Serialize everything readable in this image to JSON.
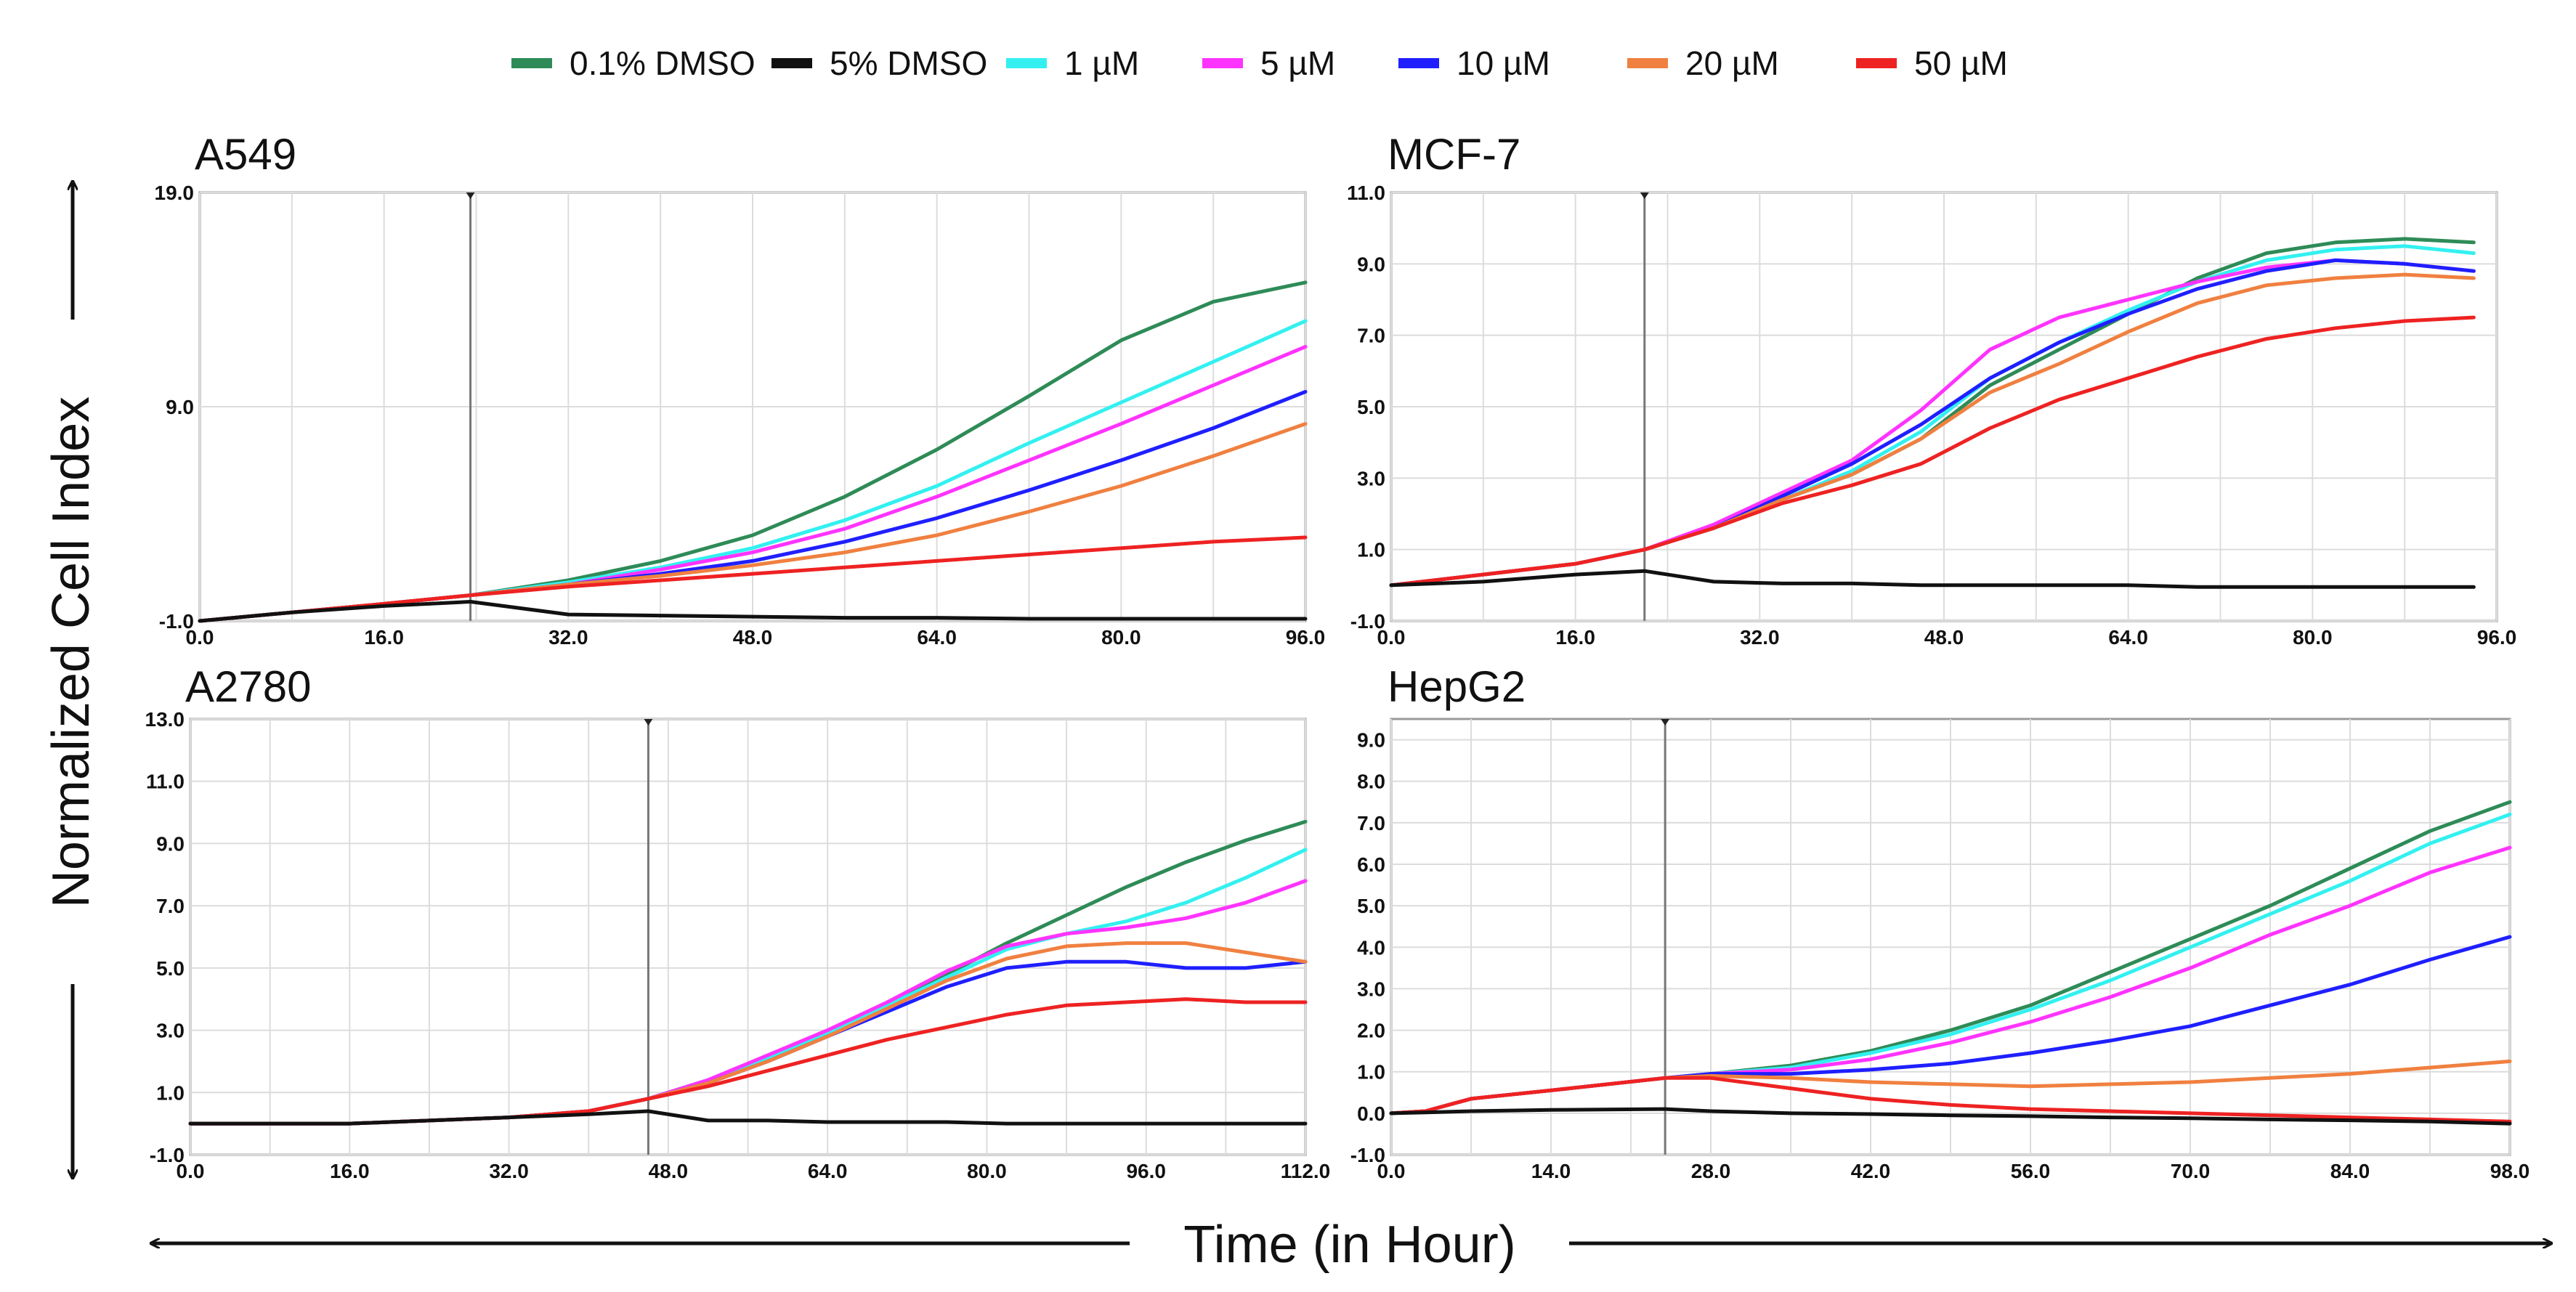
{
  "figure": {
    "y_axis_label": "Normalized Cell Index",
    "x_axis_label": "Time (in Hour)"
  },
  "legend": [
    {
      "name": "0.1% DMSO",
      "color": "#2e8b57"
    },
    {
      "name": "5% DMSO",
      "color": "#111111"
    },
    {
      "name": "1 µM",
      "color": "#33f0f0"
    },
    {
      "name": "5 µM",
      "color": "#ff33ff"
    },
    {
      "name": "10 µM",
      "color": "#1f1fff"
    },
    {
      "name": "20 µM",
      "color": "#f08040"
    },
    {
      "name": "50 µM",
      "color": "#ee2222"
    }
  ],
  "chart_data": [
    {
      "type": "line",
      "title": "A549",
      "xlabel": "Time (in Hour)",
      "ylabel": "Normalized Cell Index",
      "xlim": [
        0,
        96
      ],
      "ylim": [
        -1,
        19
      ],
      "x_ticks": [
        0,
        16,
        32,
        48,
        64,
        80,
        96
      ],
      "x_tick_labels": [
        "0.0",
        "16.0",
        "32.0",
        "48.0",
        "64.0",
        "80.0",
        "96.0"
      ],
      "y_tick_labels": [
        {
          "v": 19,
          "t": "19.0"
        },
        {
          "v": 9,
          "t": "9.0"
        },
        {
          "v": -1,
          "t": "-1.0"
        }
      ],
      "x_grid": [
        0,
        8,
        16,
        24,
        32,
        40,
        48,
        56,
        64,
        72,
        80,
        88,
        96
      ],
      "y_grid": [
        -1,
        9,
        19
      ],
      "treatment_time": 23.5,
      "x": [
        0,
        8,
        16,
        23.5,
        32,
        40,
        48,
        56,
        64,
        72,
        80,
        88,
        96
      ],
      "series": [
        {
          "name": "0.1% DMSO",
          "values": [
            -1.0,
            -0.6,
            -0.2,
            0.2,
            0.9,
            1.8,
            3.0,
            4.8,
            7.0,
            9.5,
            12.1,
            13.9,
            14.8
          ]
        },
        {
          "name": "5% DMSO",
          "values": [
            -1.0,
            -0.6,
            -0.3,
            -0.1,
            -0.7,
            -0.75,
            -0.8,
            -0.85,
            -0.85,
            -0.9,
            -0.9,
            -0.9,
            -0.9
          ]
        },
        {
          "name": "1 µM",
          "values": [
            -1.0,
            -0.6,
            -0.2,
            0.2,
            0.8,
            1.5,
            2.4,
            3.7,
            5.3,
            7.3,
            9.2,
            11.1,
            13.0
          ]
        },
        {
          "name": "5 µM",
          "values": [
            -1.0,
            -0.6,
            -0.2,
            0.2,
            0.7,
            1.4,
            2.2,
            3.3,
            4.8,
            6.5,
            8.2,
            10.0,
            11.8
          ]
        },
        {
          "name": "10 µM",
          "values": [
            -1.0,
            -0.6,
            -0.2,
            0.2,
            0.7,
            1.2,
            1.8,
            2.7,
            3.8,
            5.1,
            6.5,
            8.0,
            9.7
          ]
        },
        {
          "name": "20 µM",
          "values": [
            -1.0,
            -0.6,
            -0.2,
            0.2,
            0.7,
            1.1,
            1.6,
            2.2,
            3.0,
            4.1,
            5.3,
            6.7,
            8.2
          ]
        },
        {
          "name": "50 µM",
          "values": [
            -1.0,
            -0.6,
            -0.2,
            0.2,
            0.6,
            0.9,
            1.2,
            1.5,
            1.8,
            2.1,
            2.4,
            2.7,
            2.9
          ]
        }
      ]
    },
    {
      "type": "line",
      "title": "MCF-7",
      "xlabel": "Time (in Hour)",
      "ylabel": "Normalized Cell Index",
      "xlim": [
        0,
        96
      ],
      "ylim": [
        -1,
        11
      ],
      "x_ticks": [
        0,
        16,
        32,
        48,
        64,
        80,
        96
      ],
      "x_tick_labels": [
        "0.0",
        "16.0",
        "32.0",
        "48.0",
        "64.0",
        "80.0",
        "96.0"
      ],
      "y_tick_labels": [
        {
          "v": 11,
          "t": "11.0"
        },
        {
          "v": 9,
          "t": "9.0"
        },
        {
          "v": 7,
          "t": "7.0"
        },
        {
          "v": 5,
          "t": "5.0"
        },
        {
          "v": 3,
          "t": "3.0"
        },
        {
          "v": 1,
          "t": "1.0"
        },
        {
          "v": -1,
          "t": "-1.0"
        }
      ],
      "x_grid": [
        0,
        8,
        16,
        24,
        32,
        40,
        48,
        56,
        64,
        72,
        80,
        88,
        96
      ],
      "y_grid": [
        -1,
        1,
        3,
        5,
        7,
        9,
        11
      ],
      "treatment_time": 22,
      "x": [
        0,
        8,
        16,
        22,
        28,
        34,
        40,
        46,
        52,
        58,
        64,
        70,
        76,
        82,
        88,
        94
      ],
      "series": [
        {
          "name": "0.1% DMSO",
          "values": [
            0,
            0.3,
            0.6,
            1.0,
            1.6,
            2.4,
            3.1,
            4.1,
            5.6,
            6.6,
            7.6,
            8.6,
            9.3,
            9.6,
            9.7,
            9.6
          ]
        },
        {
          "name": "5% DMSO",
          "values": [
            0,
            0.1,
            0.3,
            0.4,
            0.1,
            0.05,
            0.05,
            0.0,
            0.0,
            0.0,
            0.0,
            -0.05,
            -0.05,
            -0.05,
            -0.05,
            -0.05
          ]
        },
        {
          "name": "1 µM",
          "values": [
            0,
            0.3,
            0.6,
            1.0,
            1.6,
            2.4,
            3.2,
            4.3,
            5.8,
            6.8,
            7.7,
            8.5,
            9.1,
            9.4,
            9.5,
            9.3
          ]
        },
        {
          "name": "5 µM",
          "values": [
            0,
            0.3,
            0.6,
            1.0,
            1.7,
            2.6,
            3.5,
            4.9,
            6.6,
            7.5,
            8.0,
            8.5,
            8.9,
            9.1,
            9.0,
            8.8
          ]
        },
        {
          "name": "10 µM",
          "values": [
            0,
            0.3,
            0.6,
            1.0,
            1.6,
            2.5,
            3.4,
            4.5,
            5.8,
            6.8,
            7.6,
            8.3,
            8.8,
            9.1,
            9.0,
            8.8
          ]
        },
        {
          "name": "20 µM",
          "values": [
            0,
            0.3,
            0.6,
            1.0,
            1.6,
            2.4,
            3.1,
            4.1,
            5.4,
            6.2,
            7.1,
            7.9,
            8.4,
            8.6,
            8.7,
            8.6
          ]
        },
        {
          "name": "50 µM",
          "values": [
            0,
            0.3,
            0.6,
            1.0,
            1.6,
            2.3,
            2.8,
            3.4,
            4.4,
            5.2,
            5.8,
            6.4,
            6.9,
            7.2,
            7.4,
            7.5
          ]
        }
      ]
    },
    {
      "type": "line",
      "title": "A2780",
      "xlabel": "Time (in Hour)",
      "ylabel": "Normalized Cell Index",
      "xlim": [
        0,
        112
      ],
      "ylim": [
        -1,
        13
      ],
      "x_ticks": [
        0,
        16,
        32,
        48,
        64,
        80,
        96,
        112
      ],
      "x_tick_labels": [
        "0.0",
        "16.0",
        "32.0",
        "48.0",
        "64.0",
        "80.0",
        "96.0",
        "112.0"
      ],
      "y_tick_labels": [
        {
          "v": 13,
          "t": "13.0"
        },
        {
          "v": 11,
          "t": "11.0"
        },
        {
          "v": 9,
          "t": "9.0"
        },
        {
          "v": 7,
          "t": "7.0"
        },
        {
          "v": 5,
          "t": "5.0"
        },
        {
          "v": 3,
          "t": "3.0"
        },
        {
          "v": 1,
          "t": "1.0"
        },
        {
          "v": -1,
          "t": "-1.0"
        }
      ],
      "x_grid": [
        0,
        8,
        16,
        24,
        32,
        40,
        48,
        56,
        64,
        72,
        80,
        88,
        96,
        104,
        112
      ],
      "y_grid": [
        -1,
        1,
        3,
        5,
        7,
        9,
        11,
        13
      ],
      "treatment_time": 46,
      "x": [
        0,
        16,
        32,
        40,
        46,
        52,
        58,
        64,
        70,
        76,
        82,
        88,
        94,
        100,
        106,
        112
      ],
      "series": [
        {
          "name": "0.1% DMSO",
          "values": [
            0,
            0,
            0.2,
            0.4,
            0.8,
            1.4,
            2.1,
            2.9,
            3.8,
            4.8,
            5.8,
            6.7,
            7.6,
            8.4,
            9.1,
            9.7
          ]
        },
        {
          "name": "5% DMSO",
          "values": [
            0,
            0,
            0.2,
            0.3,
            0.4,
            0.1,
            0.1,
            0.05,
            0.05,
            0.05,
            0.0,
            0.0,
            0.0,
            0.0,
            0.0,
            0.0
          ]
        },
        {
          "name": "1 µM",
          "values": [
            0,
            0,
            0.2,
            0.4,
            0.8,
            1.4,
            2.1,
            2.9,
            3.8,
            4.7,
            5.6,
            6.1,
            6.5,
            7.1,
            7.9,
            8.8
          ]
        },
        {
          "name": "5 µM",
          "values": [
            0,
            0,
            0.2,
            0.4,
            0.8,
            1.4,
            2.2,
            3.0,
            3.9,
            4.9,
            5.7,
            6.1,
            6.3,
            6.6,
            7.1,
            7.8
          ]
        },
        {
          "name": "10 µM",
          "values": [
            0,
            0,
            0.2,
            0.4,
            0.8,
            1.3,
            2.0,
            2.8,
            3.6,
            4.4,
            5.0,
            5.2,
            5.2,
            5.0,
            5.0,
            5.2
          ]
        },
        {
          "name": "20 µM",
          "values": [
            0,
            0,
            0.2,
            0.4,
            0.8,
            1.3,
            2.0,
            2.8,
            3.7,
            4.6,
            5.3,
            5.7,
            5.8,
            5.8,
            5.5,
            5.2
          ]
        },
        {
          "name": "50 µM",
          "values": [
            0,
            0,
            0.2,
            0.4,
            0.8,
            1.2,
            1.7,
            2.2,
            2.7,
            3.1,
            3.5,
            3.8,
            3.9,
            4.0,
            3.9,
            3.9
          ]
        }
      ]
    },
    {
      "type": "line",
      "title": "HepG2",
      "xlabel": "Time (in Hour)",
      "ylabel": "Normalized Cell Index",
      "xlim": [
        0,
        98
      ],
      "ylim": [
        -1,
        9.5
      ],
      "x_ticks": [
        0,
        14,
        28,
        42,
        56,
        70,
        84,
        98
      ],
      "x_tick_labels": [
        "0.0",
        "14.0",
        "28.0",
        "42.0",
        "56.0",
        "70.0",
        "84.0",
        "98.0"
      ],
      "y_tick_labels": [
        {
          "v": 9,
          "t": "9.0"
        },
        {
          "v": 8,
          "t": "8.0"
        },
        {
          "v": 7,
          "t": "7.0"
        },
        {
          "v": 6,
          "t": "6.0"
        },
        {
          "v": 5,
          "t": "5.0"
        },
        {
          "v": 4,
          "t": "4.0"
        },
        {
          "v": 3,
          "t": "3.0"
        },
        {
          "v": 2,
          "t": "2.0"
        },
        {
          "v": 1,
          "t": "1.0"
        },
        {
          "v": 0,
          "t": "0.0"
        },
        {
          "v": -1,
          "t": "-1.0"
        }
      ],
      "x_grid": [
        0,
        7,
        14,
        21,
        28,
        35,
        42,
        49,
        56,
        63,
        70,
        77,
        84,
        91,
        98
      ],
      "y_grid": [
        -1,
        0,
        1,
        2,
        3,
        4,
        5,
        6,
        7,
        8,
        9
      ],
      "treatment_time": 24,
      "x": [
        0,
        3,
        7,
        14,
        24,
        28,
        35,
        42,
        49,
        56,
        63,
        70,
        77,
        84,
        91,
        98
      ],
      "series": [
        {
          "name": "0.1% DMSO",
          "values": [
            0,
            0.05,
            0.35,
            0.55,
            0.85,
            0.95,
            1.15,
            1.5,
            2.0,
            2.6,
            3.4,
            4.2,
            5.0,
            5.9,
            6.8,
            7.5
          ]
        },
        {
          "name": "5% DMSO",
          "values": [
            0,
            0.02,
            0.05,
            0.08,
            0.1,
            0.05,
            0.0,
            -0.02,
            -0.05,
            -0.07,
            -0.1,
            -0.12,
            -0.15,
            -0.17,
            -0.2,
            -0.25
          ]
        },
        {
          "name": "1 µM",
          "values": [
            0,
            0.05,
            0.35,
            0.55,
            0.85,
            0.95,
            1.1,
            1.45,
            1.9,
            2.5,
            3.2,
            4.0,
            4.8,
            5.6,
            6.5,
            7.2
          ]
        },
        {
          "name": "5 µM",
          "values": [
            0,
            0.05,
            0.35,
            0.55,
            0.85,
            0.95,
            1.05,
            1.3,
            1.7,
            2.2,
            2.8,
            3.5,
            4.3,
            5.0,
            5.8,
            6.4
          ]
        },
        {
          "name": "10 µM",
          "values": [
            0,
            0.05,
            0.35,
            0.55,
            0.85,
            0.95,
            0.95,
            1.05,
            1.2,
            1.45,
            1.75,
            2.1,
            2.6,
            3.1,
            3.7,
            4.25
          ]
        },
        {
          "name": "20 µM",
          "values": [
            0,
            0.05,
            0.35,
            0.55,
            0.85,
            0.9,
            0.85,
            0.75,
            0.7,
            0.65,
            0.7,
            0.75,
            0.85,
            0.95,
            1.1,
            1.25
          ]
        },
        {
          "name": "50 µM",
          "values": [
            0,
            0.05,
            0.35,
            0.55,
            0.85,
            0.85,
            0.6,
            0.35,
            0.2,
            0.1,
            0.05,
            0.0,
            -0.05,
            -0.1,
            -0.15,
            -0.2
          ]
        }
      ]
    }
  ]
}
